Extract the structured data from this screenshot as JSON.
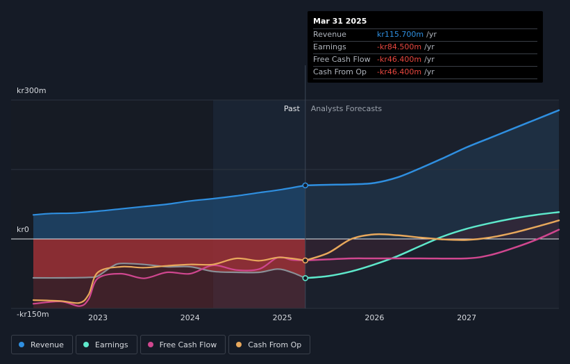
{
  "chart_data": {
    "type": "line",
    "currency_prefix": "kr",
    "y_axis": {
      "ylim": [
        -150,
        300
      ],
      "tick_labels": [
        "kr300m",
        "kr0",
        "-kr150m"
      ],
      "tick_values": [
        300,
        0,
        -150
      ]
    },
    "x_axis": {
      "tick_labels": [
        "2023",
        "2024",
        "2025",
        "2026",
        "2027"
      ],
      "tick_values": [
        2023,
        2024,
        2025,
        2026,
        2027
      ],
      "xlim": [
        2022.3,
        2028.0
      ]
    },
    "divider_x": 2025.25,
    "past_shade_start": 2024.25,
    "past_label": "Past",
    "forecast_label": "Analysts Forecasts",
    "series": [
      {
        "name": "Revenue",
        "color": "#2f8fe0",
        "fill": "#1d3d5e",
        "points": [
          [
            2022.3,
            52
          ],
          [
            2022.5,
            55
          ],
          [
            2022.75,
            56
          ],
          [
            2023.0,
            60
          ],
          [
            2023.25,
            65
          ],
          [
            2023.5,
            70
          ],
          [
            2023.75,
            75
          ],
          [
            2024.0,
            82
          ],
          [
            2024.25,
            87
          ],
          [
            2024.5,
            93
          ],
          [
            2024.75,
            100
          ],
          [
            2025.0,
            107
          ],
          [
            2025.25,
            115.7
          ],
          [
            2025.5,
            117
          ],
          [
            2025.75,
            118
          ],
          [
            2026.0,
            121
          ],
          [
            2026.25,
            133
          ],
          [
            2026.5,
            153
          ],
          [
            2026.75,
            175
          ],
          [
            2027.0,
            198
          ],
          [
            2027.25,
            218
          ],
          [
            2027.5,
            238
          ],
          [
            2027.75,
            258
          ],
          [
            2028.0,
            278
          ]
        ]
      },
      {
        "name": "Earnings",
        "color": "#5ee8cb",
        "points": [
          [
            2022.3,
            -84
          ],
          [
            2022.6,
            -84
          ],
          [
            2022.9,
            -83
          ],
          [
            2023.0,
            -80
          ],
          [
            2023.15,
            -60
          ],
          [
            2023.25,
            -53
          ],
          [
            2023.5,
            -55
          ],
          [
            2023.75,
            -60
          ],
          [
            2024.0,
            -60
          ],
          [
            2024.25,
            -70
          ],
          [
            2024.5,
            -72
          ],
          [
            2024.75,
            -72
          ],
          [
            2024.95,
            -65
          ],
          [
            2025.1,
            -72
          ],
          [
            2025.25,
            -84.5
          ],
          [
            2025.5,
            -80
          ],
          [
            2025.75,
            -70
          ],
          [
            2026.0,
            -55
          ],
          [
            2026.25,
            -37
          ],
          [
            2026.5,
            -15
          ],
          [
            2026.75,
            6
          ],
          [
            2027.0,
            22
          ],
          [
            2027.25,
            34
          ],
          [
            2027.5,
            44
          ],
          [
            2027.75,
            52
          ],
          [
            2028.0,
            58
          ]
        ]
      },
      {
        "name": "Free Cash Flow",
        "color": "#d0478f",
        "points": [
          [
            2022.3,
            -140
          ],
          [
            2022.6,
            -135
          ],
          [
            2022.8,
            -145
          ],
          [
            2022.9,
            -130
          ],
          [
            2023.0,
            -85
          ],
          [
            2023.25,
            -75
          ],
          [
            2023.5,
            -85
          ],
          [
            2023.75,
            -72
          ],
          [
            2024.0,
            -75
          ],
          [
            2024.25,
            -57
          ],
          [
            2024.5,
            -67
          ],
          [
            2024.75,
            -65
          ],
          [
            2024.95,
            -40
          ],
          [
            2025.1,
            -45
          ],
          [
            2025.25,
            -46.4
          ],
          [
            2025.5,
            -44
          ],
          [
            2025.75,
            -42
          ],
          [
            2026.0,
            -42
          ],
          [
            2026.5,
            -42
          ],
          [
            2027.0,
            -42
          ],
          [
            2027.25,
            -35
          ],
          [
            2027.5,
            -20
          ],
          [
            2027.75,
            -2
          ],
          [
            2028.0,
            20
          ]
        ]
      },
      {
        "name": "Cash From Op",
        "color": "#e8a85c",
        "points": [
          [
            2022.3,
            -132
          ],
          [
            2022.6,
            -134
          ],
          [
            2022.8,
            -138
          ],
          [
            2022.9,
            -120
          ],
          [
            2023.0,
            -72
          ],
          [
            2023.25,
            -60
          ],
          [
            2023.5,
            -62
          ],
          [
            2023.75,
            -58
          ],
          [
            2024.0,
            -55
          ],
          [
            2024.25,
            -55
          ],
          [
            2024.5,
            -42
          ],
          [
            2024.75,
            -47
          ],
          [
            2024.95,
            -40
          ],
          [
            2025.1,
            -42
          ],
          [
            2025.25,
            -46.4
          ],
          [
            2025.5,
            -30
          ],
          [
            2025.75,
            0
          ],
          [
            2026.0,
            10
          ],
          [
            2026.25,
            8
          ],
          [
            2026.5,
            3
          ],
          [
            2026.75,
            -1
          ],
          [
            2027.0,
            -2
          ],
          [
            2027.25,
            3
          ],
          [
            2027.5,
            13
          ],
          [
            2027.75,
            26
          ],
          [
            2028.0,
            40
          ]
        ]
      }
    ]
  },
  "tooltip": {
    "date": "Mar 31 2025",
    "rows": [
      {
        "label": "Revenue",
        "value": "kr115.700m",
        "unit": "/yr",
        "color": "#2f8fe0"
      },
      {
        "label": "Earnings",
        "value": "-kr84.500m",
        "unit": "/yr",
        "color": "#e8473f"
      },
      {
        "label": "Free Cash Flow",
        "value": "-kr46.400m",
        "unit": "/yr",
        "color": "#e8473f"
      },
      {
        "label": "Cash From Op",
        "value": "-kr46.400m",
        "unit": "/yr",
        "color": "#e8473f"
      }
    ]
  },
  "legend": [
    {
      "label": "Revenue",
      "color": "#2f8fe0"
    },
    {
      "label": "Earnings",
      "color": "#5ee8cb"
    },
    {
      "label": "Free Cash Flow",
      "color": "#d0478f"
    },
    {
      "label": "Cash From Op",
      "color": "#e8a85c"
    }
  ]
}
